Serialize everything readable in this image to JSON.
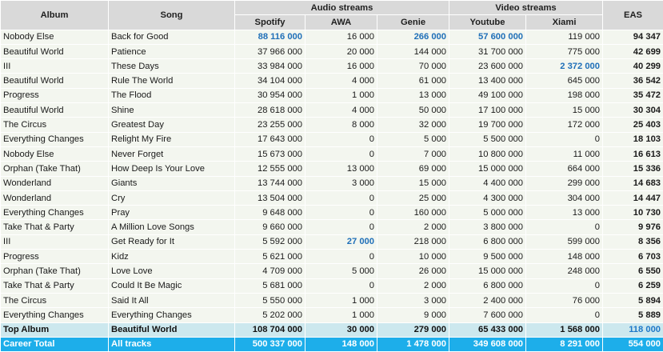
{
  "headers": {
    "album": "Album",
    "song": "Song",
    "audio_streams": "Audio streams",
    "video_streams": "Video streams",
    "eas": "EAS",
    "spotify": "Spotify",
    "awa": "AWA",
    "genie": "Genie",
    "youtube": "Youtube",
    "xiami": "Xiami"
  },
  "rows": [
    {
      "album": "Nobody Else",
      "song": "Back for Good",
      "spotify": "88 116 000",
      "awa": "16 000",
      "genie": "266 000",
      "youtube": "57 600 000",
      "xiami": "119 000",
      "eas": "94 347",
      "hl": [
        "spotify",
        "genie",
        "youtube"
      ]
    },
    {
      "album": "Beautiful World",
      "song": "Patience",
      "spotify": "37 966 000",
      "awa": "20 000",
      "genie": "144 000",
      "youtube": "31 700 000",
      "xiami": "775 000",
      "eas": "42 699",
      "hl": []
    },
    {
      "album": "III",
      "song": "These Days",
      "spotify": "33 984 000",
      "awa": "16 000",
      "genie": "70 000",
      "youtube": "23 600 000",
      "xiami": "2 372 000",
      "eas": "40 299",
      "hl": [
        "xiami"
      ]
    },
    {
      "album": "Beautiful World",
      "song": "Rule The World",
      "spotify": "34 104 000",
      "awa": "4 000",
      "genie": "61 000",
      "youtube": "13 400 000",
      "xiami": "645 000",
      "eas": "36 542",
      "hl": []
    },
    {
      "album": "Progress",
      "song": "The Flood",
      "spotify": "30 954 000",
      "awa": "1 000",
      "genie": "13 000",
      "youtube": "49 100 000",
      "xiami": "198 000",
      "eas": "35 472",
      "hl": []
    },
    {
      "album": "Beautiful World",
      "song": "Shine",
      "spotify": "28 618 000",
      "awa": "4 000",
      "genie": "50 000",
      "youtube": "17 100 000",
      "xiami": "15 000",
      "eas": "30 304",
      "hl": []
    },
    {
      "album": "The Circus",
      "song": "Greatest Day",
      "spotify": "23 255 000",
      "awa": "8 000",
      "genie": "32 000",
      "youtube": "19 700 000",
      "xiami": "172 000",
      "eas": "25 403",
      "hl": []
    },
    {
      "album": "Everything Changes",
      "song": "Relight My Fire",
      "spotify": "17 643 000",
      "awa": "0",
      "genie": "5 000",
      "youtube": "5 500 000",
      "xiami": "0",
      "eas": "18 103",
      "hl": []
    },
    {
      "album": "Nobody Else",
      "song": "Never Forget",
      "spotify": "15 673 000",
      "awa": "0",
      "genie": "7 000",
      "youtube": "10 800 000",
      "xiami": "11 000",
      "eas": "16 613",
      "hl": []
    },
    {
      "album": "Orphan (Take That)",
      "song": "How Deep Is Your Love",
      "spotify": "12 555 000",
      "awa": "13 000",
      "genie": "69 000",
      "youtube": "15 000 000",
      "xiami": "664 000",
      "eas": "15 336",
      "hl": []
    },
    {
      "album": "Wonderland",
      "song": "Giants",
      "spotify": "13 744 000",
      "awa": "3 000",
      "genie": "15 000",
      "youtube": "4 400 000",
      "xiami": "299 000",
      "eas": "14 683",
      "hl": []
    },
    {
      "album": "Wonderland",
      "song": "Cry",
      "spotify": "13 504 000",
      "awa": "0",
      "genie": "25 000",
      "youtube": "4 300 000",
      "xiami": "304 000",
      "eas": "14 447",
      "hl": []
    },
    {
      "album": "Everything Changes",
      "song": "Pray",
      "spotify": "9 648 000",
      "awa": "0",
      "genie": "160 000",
      "youtube": "5 000 000",
      "xiami": "13 000",
      "eas": "10 730",
      "hl": []
    },
    {
      "album": "Take That & Party",
      "song": "A Million Love Songs",
      "spotify": "9 660 000",
      "awa": "0",
      "genie": "2 000",
      "youtube": "3 800 000",
      "xiami": "0",
      "eas": "9 976",
      "hl": []
    },
    {
      "album": "III",
      "song": "Get Ready for It",
      "spotify": "5 592 000",
      "awa": "27 000",
      "genie": "218 000",
      "youtube": "6 800 000",
      "xiami": "599 000",
      "eas": "8 356",
      "hl": [
        "awa"
      ]
    },
    {
      "album": "Progress",
      "song": "Kidz",
      "spotify": "5 621 000",
      "awa": "0",
      "genie": "10 000",
      "youtube": "9 500 000",
      "xiami": "148 000",
      "eas": "6 703",
      "hl": []
    },
    {
      "album": "Orphan (Take That)",
      "song": "Love Love",
      "spotify": "4 709 000",
      "awa": "5 000",
      "genie": "26 000",
      "youtube": "15 000 000",
      "xiami": "248 000",
      "eas": "6 550",
      "hl": []
    },
    {
      "album": "Take That & Party",
      "song": "Could It Be Magic",
      "spotify": "5 681 000",
      "awa": "0",
      "genie": "2 000",
      "youtube": "6 800 000",
      "xiami": "0",
      "eas": "6 259",
      "hl": []
    },
    {
      "album": "The Circus",
      "song": "Said It All",
      "spotify": "5 550 000",
      "awa": "1 000",
      "genie": "3 000",
      "youtube": "2 400 000",
      "xiami": "76 000",
      "eas": "5 894",
      "hl": []
    },
    {
      "album": "Everything Changes",
      "song": "Everything Changes",
      "spotify": "5 202 000",
      "awa": "1 000",
      "genie": "9 000",
      "youtube": "7 600 000",
      "xiami": "0",
      "eas": "5 889",
      "hl": []
    }
  ],
  "top_album": {
    "label": "Top Album",
    "name": "Beautiful World",
    "spotify": "108 704 000",
    "awa": "30 000",
    "genie": "279 000",
    "youtube": "65 433 000",
    "xiami": "1 568 000",
    "eas": "118 000"
  },
  "career_total": {
    "label": "Career Total",
    "name": "All tracks",
    "spotify": "500 337 000",
    "awa": "148 000",
    "genie": "1 478 000",
    "youtube": "349 608 000",
    "xiami": "8 291 000",
    "eas": "554 000"
  },
  "colors": {
    "header_bg": "#d9d9d9",
    "row_bg": "#f3f6ef",
    "highlight_text": "#1f6fb8",
    "top_album_bg": "#cce8ee",
    "career_total_bg": "#1daeea"
  }
}
